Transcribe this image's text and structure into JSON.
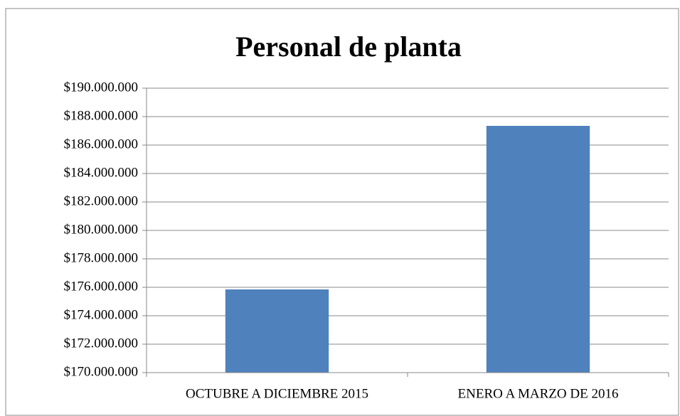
{
  "chart_data": {
    "type": "bar",
    "title": "Personal de planta",
    "categories": [
      "OCTUBRE A DICIEMBRE 2015",
      "ENERO A MARZO DE 2016"
    ],
    "values": [
      175850000,
      187350000
    ],
    "color": "#4f81bd",
    "ylim": [
      170000000,
      190000000
    ],
    "yticks": [
      {
        "value": 170000000,
        "label": "$170.000.000"
      },
      {
        "value": 172000000,
        "label": "$172.000.000"
      },
      {
        "value": 174000000,
        "label": "$174.000.000"
      },
      {
        "value": 176000000,
        "label": "$176.000.000"
      },
      {
        "value": 178000000,
        "label": "$178.000.000"
      },
      {
        "value": 180000000,
        "label": "$180.000.000"
      },
      {
        "value": 182000000,
        "label": "$182.000.000"
      },
      {
        "value": 184000000,
        "label": "$184.000.000"
      },
      {
        "value": 186000000,
        "label": "$186.000.000"
      },
      {
        "value": 188000000,
        "label": "$188.000.000"
      },
      {
        "value": 190000000,
        "label": "$190.000.000"
      }
    ],
    "grid": true
  }
}
